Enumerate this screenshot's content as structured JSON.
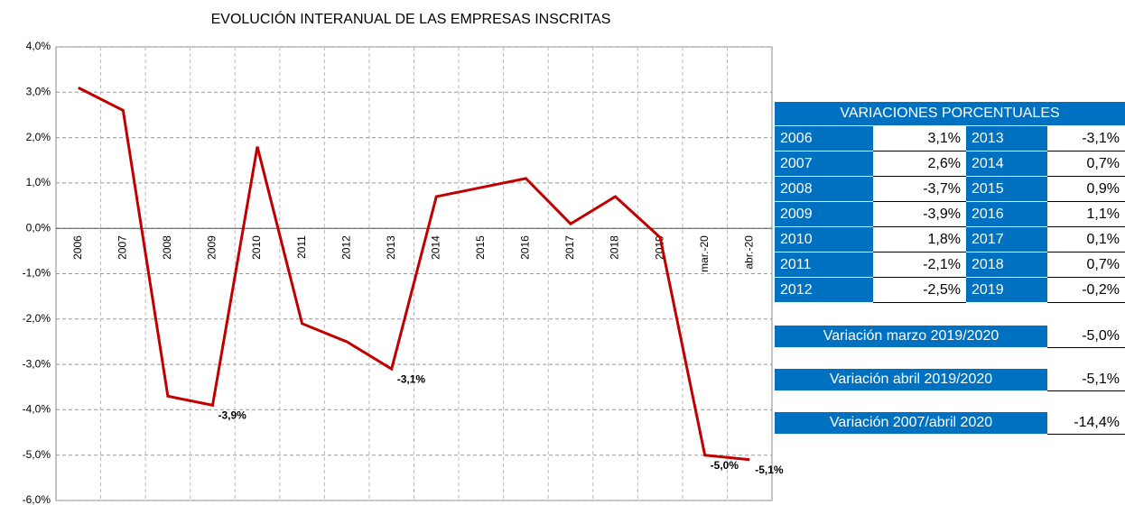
{
  "chart_data": {
    "type": "line",
    "title": "EVOLUCIÓN INTERANUAL DE LAS EMPRESAS INSCRITAS",
    "categories": [
      "2006",
      "2007",
      "2008",
      "2009",
      "2010",
      "2011",
      "2012",
      "2013",
      "2014",
      "2015",
      "2016",
      "2017",
      "2018",
      "2019",
      "mar.-20",
      "abr.-20"
    ],
    "series": [
      {
        "name": null,
        "color": "#c00000",
        "values": [
          3.1,
          2.6,
          -3.7,
          -3.9,
          1.8,
          -2.1,
          -2.5,
          -3.1,
          0.7,
          0.9,
          1.1,
          0.1,
          0.7,
          -0.2,
          -5.0,
          -5.1
        ],
        "value_labels": [
          null,
          null,
          null,
          "-3,9%",
          null,
          null,
          null,
          "-3,1%",
          null,
          null,
          null,
          null,
          null,
          null,
          "-5,0%",
          "-5,1%"
        ]
      }
    ],
    "ylim": [
      -6,
      4
    ],
    "yticks": [
      {
        "value": -6,
        "label": "-6,0%"
      },
      {
        "value": -5,
        "label": "-5,0%"
      },
      {
        "value": -4,
        "label": "-4,0%"
      },
      {
        "value": -3,
        "label": "-3,0%"
      },
      {
        "value": -2,
        "label": "-2,0%"
      },
      {
        "value": -1,
        "label": "-1,0%"
      },
      {
        "value": 0,
        "label": "0,0%"
      },
      {
        "value": 1,
        "label": "1,0%"
      },
      {
        "value": 2,
        "label": "2,0%"
      },
      {
        "value": 3,
        "label": "3,0%"
      },
      {
        "value": 4,
        "label": "4,0%"
      }
    ],
    "grid": true
  },
  "table": {
    "title": "VARIACIONES PORCENTUALES",
    "rows": [
      [
        "2006",
        "3,1%",
        "2013",
        "-3,1%"
      ],
      [
        "2007",
        "2,6%",
        "2014",
        "0,7%"
      ],
      [
        "2008",
        "-3,7%",
        "2015",
        "0,9%"
      ],
      [
        "2009",
        "-3,9%",
        "2016",
        "1,1%"
      ],
      [
        "2010",
        "1,8%",
        "2017",
        "0,1%"
      ],
      [
        "2011",
        "-2,1%",
        "2018",
        "0,7%"
      ],
      [
        "2012",
        "-2,5%",
        "2019",
        "-0,2%"
      ]
    ],
    "summary": [
      [
        "Variación marzo 2019/2020",
        "-5,0%"
      ],
      [
        "Variación abril 2019/2020",
        "-5,1%"
      ],
      [
        "Variación 2007/abril 2020",
        "-14,4%"
      ]
    ]
  }
}
